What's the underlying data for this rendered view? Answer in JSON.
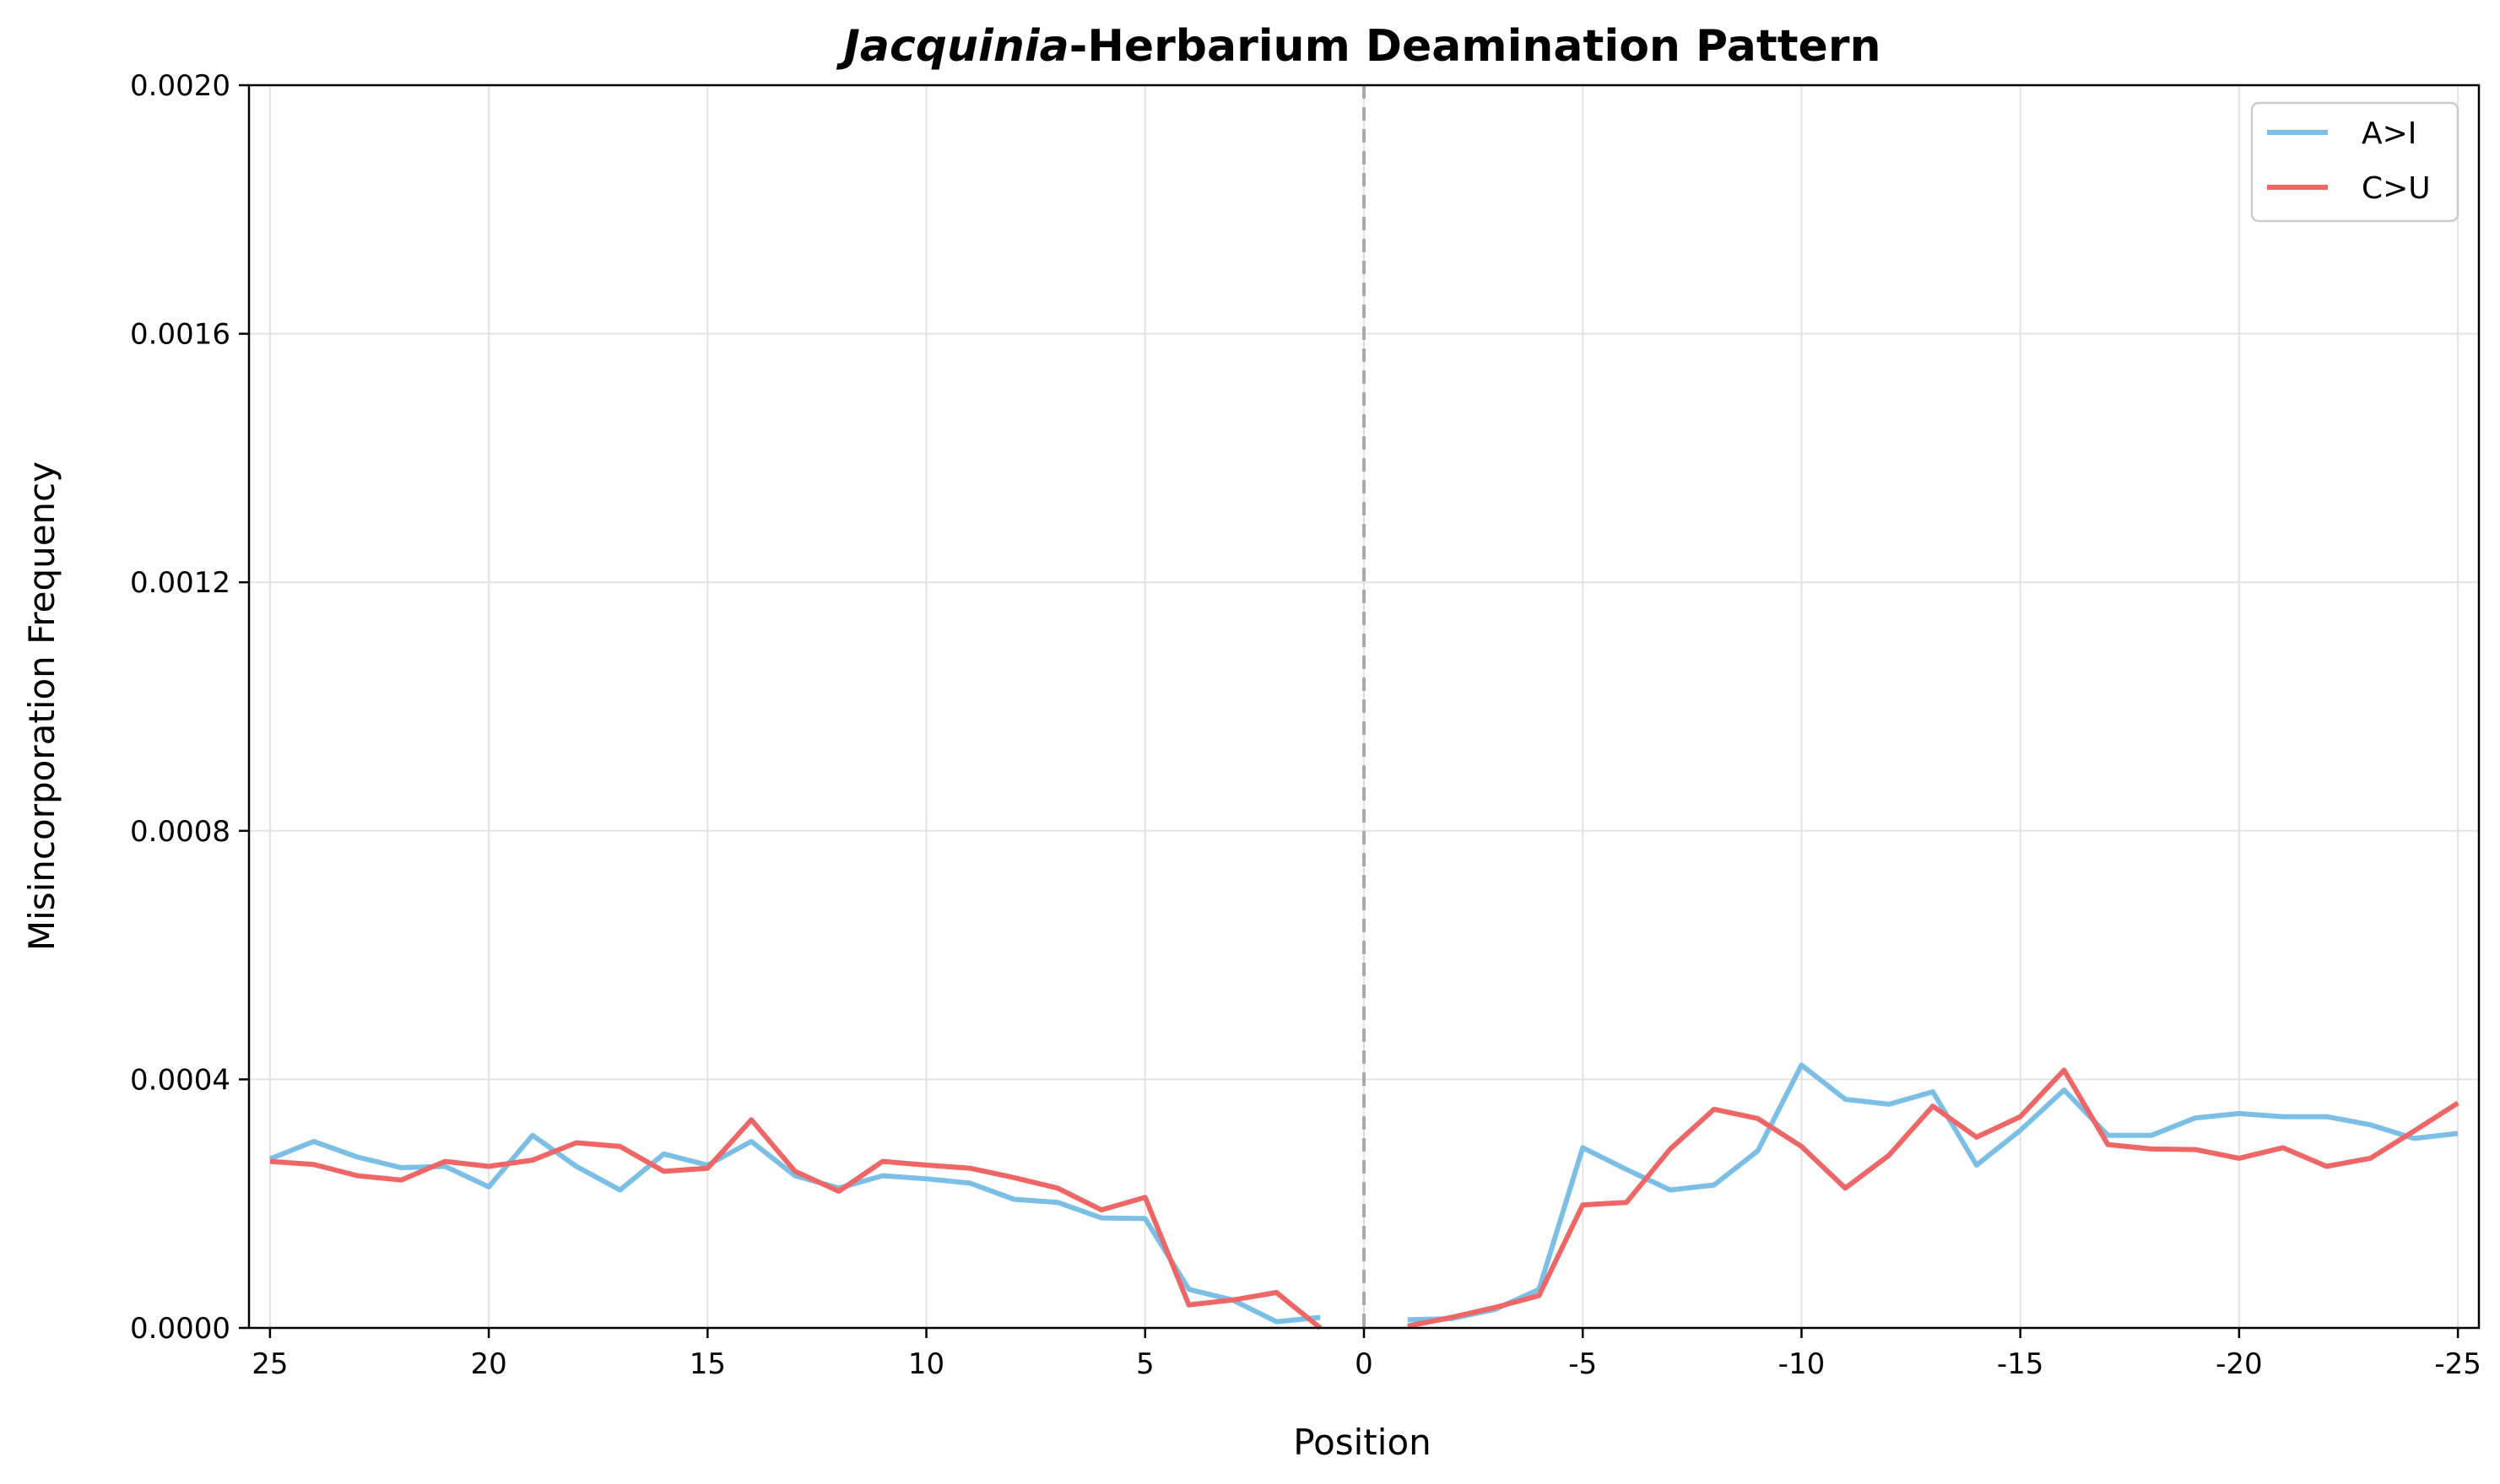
{
  "chart_data": {
    "type": "line",
    "title_italic": "Jacquinia",
    "title_rest": "-Herbarium Deamination Pattern",
    "xlabel": "Position",
    "ylabel": "Misincorporation Frequency",
    "xlim": [
      25,
      -25
    ],
    "ylim": [
      0,
      0.002
    ],
    "y_tick_labels": [
      "0.0000",
      "0.0004",
      "0.0008",
      "0.0012",
      "0.0016",
      "0.0020"
    ],
    "x_tick_labels": [
      "25",
      "20",
      "15",
      "10",
      "5",
      "0",
      "-5",
      "-10",
      "-15",
      "-20",
      "-25"
    ],
    "grid": true,
    "legend_position": "top-right",
    "reference_line": {
      "x": 0,
      "style": "dashed",
      "color": "#aaaaaa"
    },
    "series": [
      {
        "name": "A>I",
        "color": "#7bbfe6",
        "segments": [
          {
            "x": [
              25,
              24,
              23,
              22,
              21,
              20,
              19,
              18,
              17,
              16,
              15,
              14,
              13,
              12,
              11,
              10,
              9,
              8,
              7,
              6,
              5,
              4,
              3,
              2,
              1
            ],
            "y": [
              0.000272,
              0.0003,
              0.000275,
              0.000258,
              0.00026,
              0.000227,
              0.00031,
              0.00026,
              0.000222,
              0.00028,
              0.000262,
              0.0003,
              0.000245,
              0.000225,
              0.000245,
              0.00024,
              0.000233,
              0.000207,
              0.000202,
              0.000177,
              0.000176,
              6.2e-05,
              4.5e-05,
              1e-05,
              1.7e-05
            ]
          },
          {
            "x": [
              -1,
              -2,
              -3,
              -4,
              -5,
              -6,
              -7,
              -8,
              -9,
              -10,
              -11,
              -12,
              -13,
              -14,
              -15,
              -16,
              -17,
              -18,
              -19,
              -20,
              -21,
              -22,
              -23,
              -24,
              -25
            ],
            "y": [
              1.3e-05,
              1.5e-05,
              3e-05,
              6.2e-05,
              0.00029,
              0.000255,
              0.000222,
              0.00023,
              0.000285,
              0.000423,
              0.000368,
              0.00036,
              0.00038,
              0.000262,
              0.000318,
              0.000383,
              0.00031,
              0.00031,
              0.000338,
              0.000345,
              0.00034,
              0.00034,
              0.000327,
              0.000305,
              0.000313
            ]
          }
        ]
      },
      {
        "name": "C>U",
        "color": "#ee6666",
        "segments": [
          {
            "x": [
              25,
              24,
              23,
              22,
              21,
              20,
              19,
              18,
              17,
              16,
              15,
              14,
              13,
              12,
              11,
              10,
              9,
              8,
              7,
              6,
              5,
              4,
              3,
              2,
              1
            ],
            "y": [
              0.000268,
              0.000263,
              0.000245,
              0.000238,
              0.000268,
              0.00026,
              0.00027,
              0.000298,
              0.000292,
              0.000252,
              0.000257,
              0.000335,
              0.000252,
              0.00022,
              0.000268,
              0.000262,
              0.000257,
              0.000242,
              0.000225,
              0.00019,
              0.00021,
              3.7e-05,
              4.5e-05,
              5.7e-05,
              0.0
            ]
          },
          {
            "x": [
              -1,
              -2,
              -3,
              -4,
              -5,
              -6,
              -7,
              -8,
              -9,
              -10,
              -11,
              -12,
              -13,
              -14,
              -15,
              -16,
              -17,
              -18,
              -19,
              -20,
              -21,
              -22,
              -23,
              -24,
              -25
            ],
            "y": [
              3e-06,
              1.7e-05,
              3.3e-05,
              5.2e-05,
              0.000198,
              0.000202,
              0.000288,
              0.000352,
              0.000337,
              0.000292,
              0.000225,
              0.000278,
              0.000357,
              0.000307,
              0.00034,
              0.000415,
              0.000295,
              0.000288,
              0.000287,
              0.000273,
              0.00029,
              0.00026,
              0.000273,
              0.000317,
              0.000362
            ]
          }
        ]
      }
    ]
  }
}
